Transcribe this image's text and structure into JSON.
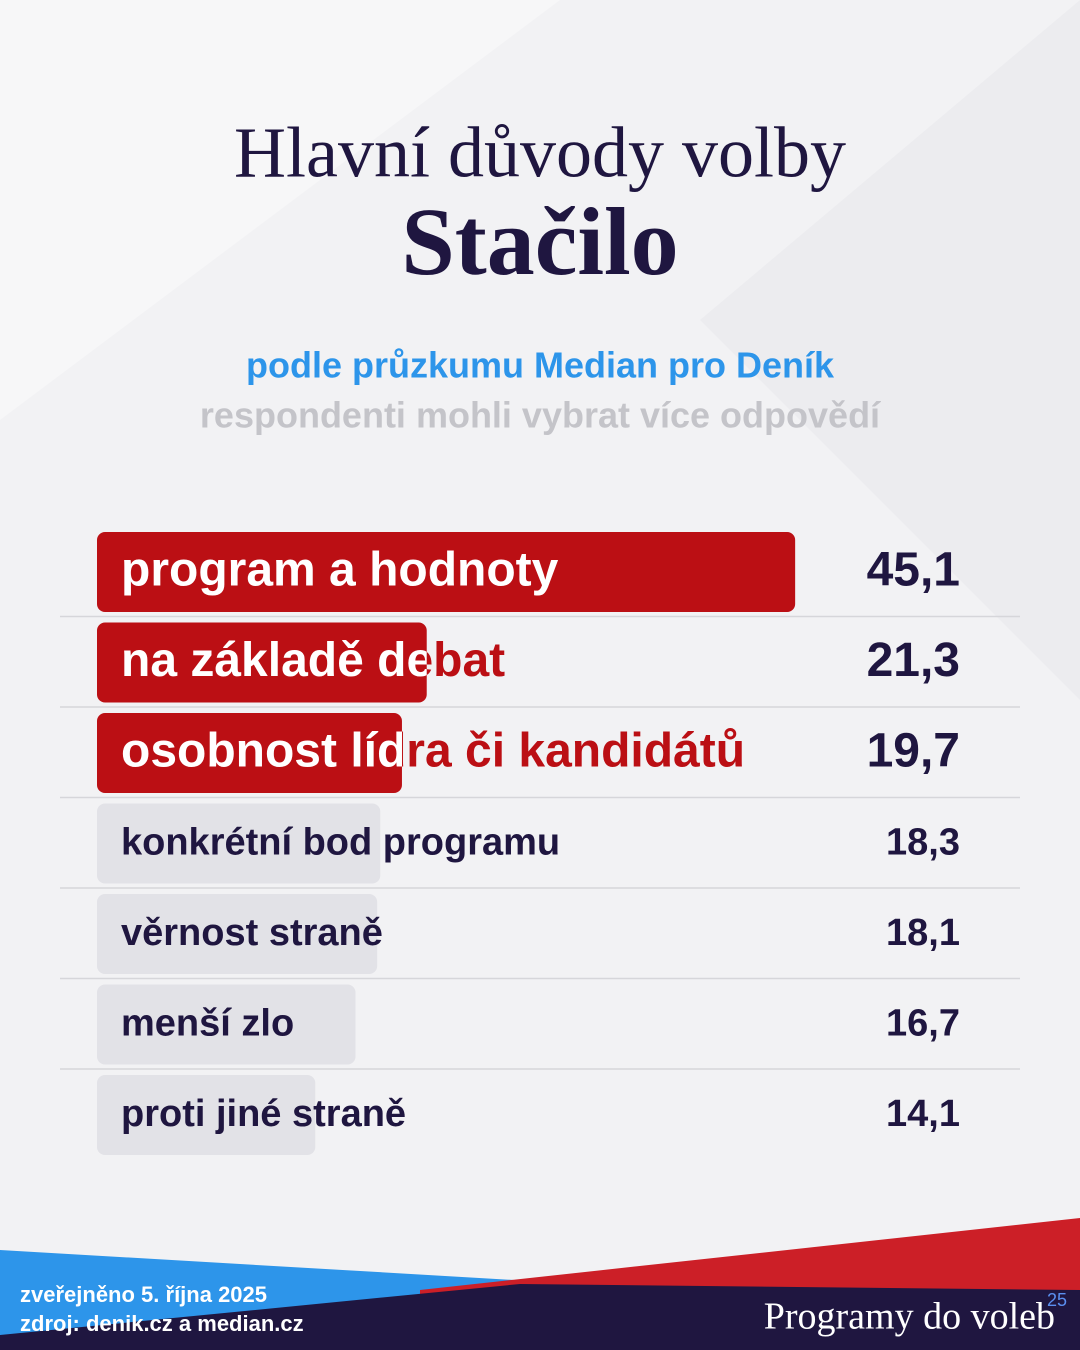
{
  "chart_data": {
    "type": "hbar",
    "title": "Hlavní důvody volby",
    "subtitle": "Stačilo",
    "source_note": "podle průzkumu Median pro Deník",
    "note": "respondenti mohli vybrat více odpovědí",
    "categories": [
      "program a hodnoty",
      "na základě debat",
      "osobnost lídra či kandidátů",
      "konkrétní bod programu",
      "věrnost straně",
      "menší zlo",
      "proti jiné straně"
    ],
    "values": [
      45.1,
      21.3,
      19.7,
      18.3,
      18.1,
      16.7,
      14.1
    ],
    "value_labels": [
      "45,1",
      "21,3",
      "19,7",
      "18,3",
      "18,1",
      "16,7",
      "14,1"
    ],
    "colors": [
      "#bb0f14",
      "#bb0f14",
      "#bb0f14",
      "#e2e2e7",
      "#e2e2e7",
      "#e2e2e7",
      "#e2e2e7"
    ]
  },
  "footer": {
    "published": "zveřejněno 5. října 2025",
    "source": "zdroj: denik.cz a median.cz",
    "brand": "Programy do voleb",
    "brand_mark": "25"
  }
}
